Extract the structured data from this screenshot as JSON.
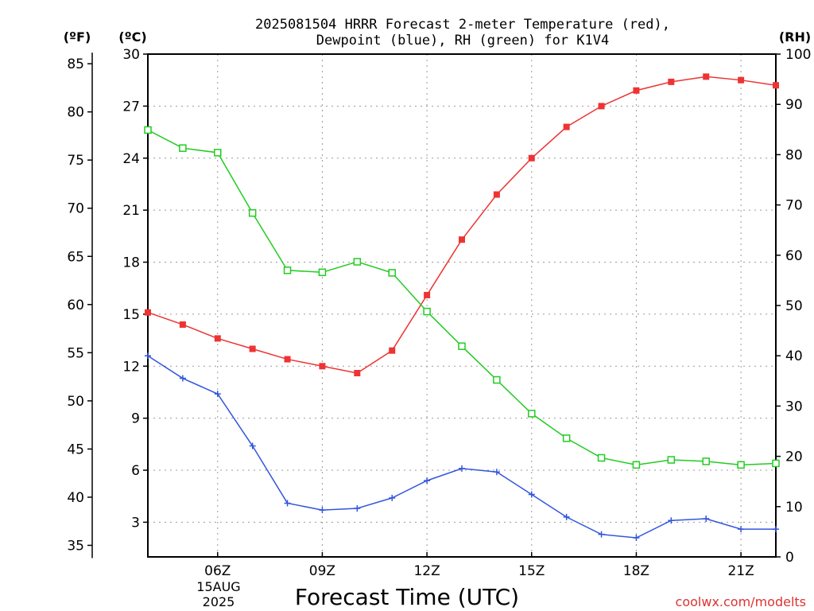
{
  "chart_data": {
    "type": "line",
    "title_line1": "2025081504 HRRR Forecast 2-meter Temperature (red),",
    "title_line2": "Dewpoint (blue), RH (green) for K1V4",
    "xlabel": "Forecast Time (UTC)",
    "x_date_line1": "15AUG",
    "x_date_line2": "2025",
    "footer": "coolwx.com/modelts",
    "x_hours": [
      4,
      5,
      6,
      7,
      8,
      9,
      10,
      11,
      12,
      13,
      14,
      15,
      16,
      17,
      18,
      19,
      20,
      21,
      22
    ],
    "xlim": [
      4,
      22
    ],
    "x_ticks": [
      {
        "hour": 6,
        "label": "06Z"
      },
      {
        "hour": 9,
        "label": "09Z"
      },
      {
        "hour": 12,
        "label": "12Z"
      },
      {
        "hour": 15,
        "label": "15Z"
      },
      {
        "hour": 18,
        "label": "18Z"
      },
      {
        "hour": 21,
        "label": "21Z"
      }
    ],
    "axes": {
      "celsius": {
        "unit_label": "(ºC)",
        "lim": [
          1,
          30
        ],
        "ticks": [
          3,
          6,
          9,
          12,
          15,
          18,
          21,
          24,
          27,
          30
        ]
      },
      "fahrenheit": {
        "unit_label": "(ºF)",
        "ticks": [
          35,
          40,
          45,
          50,
          55,
          60,
          65,
          70,
          75,
          80,
          85
        ]
      },
      "rh": {
        "unit_label": "(RH)",
        "lim": [
          0,
          100
        ],
        "ticks": [
          0,
          10,
          20,
          30,
          40,
          50,
          60,
          70,
          80,
          90,
          100
        ]
      }
    },
    "grid": true,
    "series": [
      {
        "key": "temperature",
        "axis": "celsius",
        "color": "#ee3333",
        "marker": "filled-square",
        "values": [
          15.1,
          14.4,
          13.6,
          13.0,
          12.4,
          12.0,
          11.6,
          12.9,
          16.1,
          19.3,
          21.9,
          24.0,
          25.8,
          27.0,
          27.9,
          28.4,
          28.7,
          28.5,
          28.2
        ]
      },
      {
        "key": "dewpoint",
        "axis": "celsius",
        "color": "#3355dd",
        "marker": "plus",
        "values": [
          12.6,
          11.3,
          10.4,
          7.4,
          4.1,
          3.7,
          3.8,
          4.4,
          5.4,
          6.1,
          5.9,
          4.6,
          3.3,
          2.3,
          2.1,
          3.1,
          3.2,
          2.6,
          2.6
        ]
      },
      {
        "key": "rh",
        "axis": "rh",
        "color": "#22cc22",
        "marker": "open-square",
        "values": [
          84.9,
          81.3,
          80.4,
          68.4,
          57.0,
          56.6,
          58.7,
          56.5,
          48.8,
          41.9,
          35.2,
          28.5,
          23.6,
          19.7,
          18.3,
          19.3,
          19.0,
          18.3,
          18.6
        ]
      }
    ]
  }
}
